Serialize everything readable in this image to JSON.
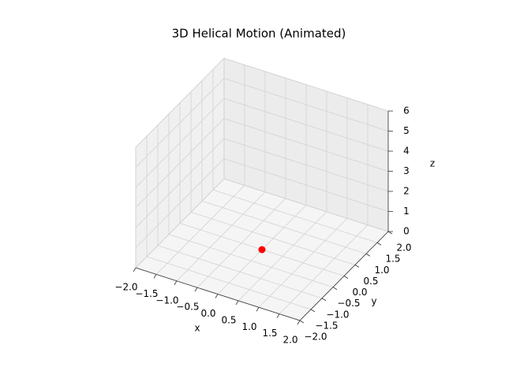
{
  "chart_data": {
    "type": "scatter3d",
    "title": "3D Helical Motion (Animated)",
    "xlabel": "x",
    "ylabel": "y",
    "zlabel": "z",
    "xlim": [
      -2,
      2
    ],
    "ylim": [
      -2,
      2
    ],
    "zlim": [
      0,
      6
    ],
    "xticks": [
      {
        "value": -2,
        "label": "−2.0"
      },
      {
        "value": -1.5,
        "label": "−1.5"
      },
      {
        "value": -1,
        "label": "−1.0"
      },
      {
        "value": -0.5,
        "label": "−0.5"
      },
      {
        "value": 0,
        "label": "0.0"
      },
      {
        "value": 0.5,
        "label": "0.5"
      },
      {
        "value": 1,
        "label": "1.0"
      },
      {
        "value": 1.5,
        "label": "1.5"
      },
      {
        "value": 2,
        "label": "2.0"
      }
    ],
    "yticks": [
      {
        "value": -2,
        "label": "−2.0"
      },
      {
        "value": -1.5,
        "label": "−1.5"
      },
      {
        "value": -1,
        "label": "−1.0"
      },
      {
        "value": -0.5,
        "label": "−0.5"
      },
      {
        "value": 0,
        "label": "0.0"
      },
      {
        "value": 0.5,
        "label": "0.5"
      },
      {
        "value": 1,
        "label": "1.0"
      },
      {
        "value": 1.5,
        "label": "1.5"
      },
      {
        "value": 2,
        "label": "2.0"
      }
    ],
    "zticks": [
      0,
      1,
      2,
      3,
      4,
      5,
      6
    ],
    "grid": true,
    "series": [
      {
        "color": "#ff0000",
        "x": [
          0
        ],
        "y": [
          0
        ],
        "z": [
          0
        ]
      }
    ]
  }
}
